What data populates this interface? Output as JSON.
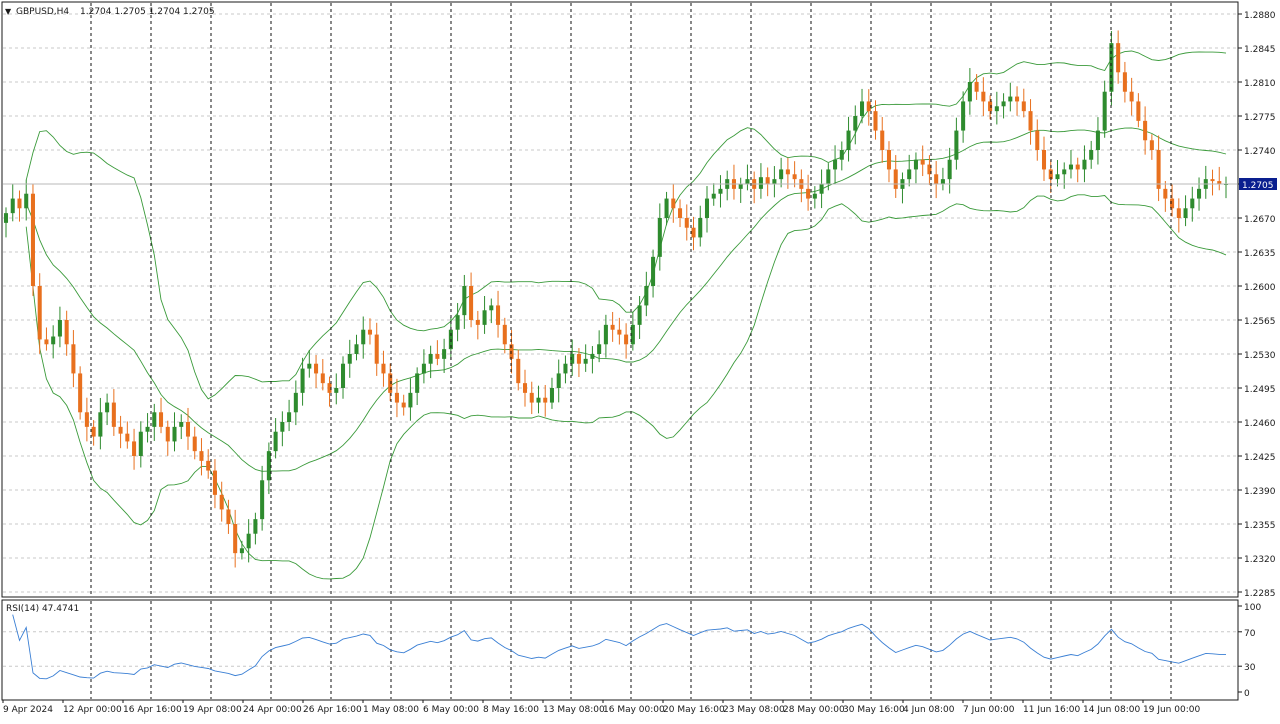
{
  "header": {
    "arrow_glyph": "▼",
    "symbol_label": "GBPUSD,H4",
    "ohlc": "1.2704 1.2705 1.2704 1.2705"
  },
  "price_axis": {
    "ticks": [
      "1.2880",
      "1.2845",
      "1.2810",
      "1.2775",
      "1.2740",
      "1.2705",
      "1.2670",
      "1.2635",
      "1.2600",
      "1.2565",
      "1.2530",
      "1.2495",
      "1.2460",
      "1.2425",
      "1.2390",
      "1.2355",
      "1.2320",
      "1.2285"
    ],
    "current_price": "1.2705"
  },
  "rsi_panel": {
    "label": "RSI(14) 47.4741",
    "ticks": [
      "100",
      "70",
      "30",
      "0"
    ]
  },
  "time_axis": {
    "labels": [
      "9 Apr 2024",
      "12 Apr 00:00",
      "16 Apr 16:00",
      "19 Apr 08:00",
      "24 Apr 00:00",
      "26 Apr 16:00",
      "1 May 08:00",
      "6 May 00:00",
      "8 May 16:00",
      "13 May 08:00",
      "16 May 00:00",
      "20 May 16:00",
      "23 May 08:00",
      "28 May 00:00",
      "30 May 16:00",
      "4 Jun 08:00",
      "7 Jun 00:00",
      "11 Jun 16:00",
      "14 Jun 08:00",
      "19 Jun 00:00"
    ]
  },
  "colors": {
    "bull": "#2e8b2e",
    "bear": "#e8701e",
    "bollinger": "#3a9a3a",
    "rsi_line": "#3a7fd4",
    "axis": "#1a1a1a",
    "grid": "#c8c8c8",
    "current_price_badge": "#0a1f8f"
  },
  "chart_data": {
    "type": "candlestick",
    "symbol": "GBPUSD",
    "timeframe": "H4",
    "ylim": [
      1.2285,
      1.288
    ],
    "indicators": [
      "Bollinger Bands",
      "RSI(14)"
    ],
    "grid": true,
    "rsi": {
      "period": 14,
      "last_value": 47.4741,
      "levels": [
        70,
        30
      ],
      "ylim": [
        0,
        100
      ]
    },
    "closes": [
      1.2675,
      1.269,
      1.268,
      1.2695,
      1.26,
      1.2545,
      1.254,
      1.2548,
      1.2565,
      1.254,
      1.251,
      1.247,
      1.2455,
      1.2445,
      1.247,
      1.248,
      1.2455,
      1.2448,
      1.244,
      1.2425,
      1.245,
      1.2455,
      1.247,
      1.2455,
      1.244,
      1.2455,
      1.246,
      1.2445,
      1.243,
      1.242,
      1.241,
      1.2385,
      1.237,
      1.2355,
      1.2325,
      1.233,
      1.2345,
      1.236,
      1.24,
      1.243,
      1.245,
      1.246,
      1.247,
      1.249,
      1.2515,
      1.252,
      1.251,
      1.25,
      1.249,
      1.2495,
      1.252,
      1.253,
      1.254,
      1.2555,
      1.255,
      1.252,
      1.251,
      1.249,
      1.248,
      1.2475,
      1.249,
      1.251,
      1.252,
      1.253,
      1.2525,
      1.2535,
      1.2555,
      1.257,
      1.26,
      1.2565,
      1.256,
      1.2575,
      1.258,
      1.256,
      1.254,
      1.2525,
      1.25,
      1.249,
      1.248,
      1.2485,
      1.248,
      1.2495,
      1.251,
      1.252,
      1.253,
      1.252,
      1.2525,
      1.253,
      1.254,
      1.256,
      1.2555,
      1.255,
      1.254,
      1.256,
      1.258,
      1.26,
      1.263,
      1.267,
      1.269,
      1.268,
      1.267,
      1.266,
      1.265,
      1.267,
      1.269,
      1.2695,
      1.27,
      1.271,
      1.27,
      1.2705,
      1.271,
      1.27,
      1.2712,
      1.2705,
      1.271,
      1.272,
      1.2715,
      1.271,
      1.27,
      1.269,
      1.2695,
      1.2705,
      1.272,
      1.273,
      1.274,
      1.276,
      1.2775,
      1.279,
      1.278,
      1.276,
      1.274,
      1.272,
      1.27,
      1.271,
      1.272,
      1.273,
      1.2725,
      1.2715,
      1.2705,
      1.271,
      1.273,
      1.276,
      1.279,
      1.281,
      1.28,
      1.279,
      1.278,
      1.2785,
      1.279,
      1.2795,
      1.279,
      1.278,
      1.276,
      1.274,
      1.272,
      1.271,
      1.2715,
      1.272,
      1.2725,
      1.272,
      1.273,
      1.274,
      1.276,
      1.28,
      1.285,
      1.282,
      1.28,
      1.279,
      1.277,
      1.275,
      1.274,
      1.27,
      1.269,
      1.268,
      1.267,
      1.268,
      1.269,
      1.27,
      1.271,
      1.2708,
      1.2705,
      1.2705
    ]
  }
}
